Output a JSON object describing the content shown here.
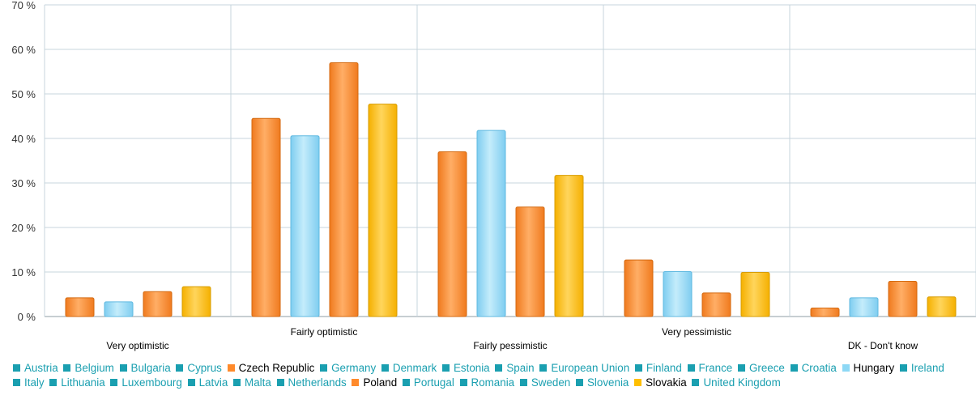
{
  "colors": {
    "inactive": "#1a9fb0",
    "czech": "#ff8a2b",
    "hungary": "#8dd8f5",
    "poland": "#ff8a2b",
    "slovakia": "#ffbf00",
    "grid": "#c7d4dc",
    "axis": "#8f9ea6",
    "text": "#333333"
  },
  "chart_data": {
    "type": "bar",
    "categories": [
      "Very optimistic",
      "Fairly optimistic",
      "Fairly pessimistic",
      "Very pessimistic",
      "DK - Don't know"
    ],
    "series": [
      {
        "name": "Czech Republic",
        "color_key": "czech",
        "values": [
          4.2,
          44.5,
          37.0,
          12.7,
          1.9
        ]
      },
      {
        "name": "Hungary",
        "color_key": "hungary",
        "values": [
          3.3,
          40.6,
          41.8,
          10.1,
          4.2
        ]
      },
      {
        "name": "Poland",
        "color_key": "poland",
        "values": [
          5.6,
          57.0,
          24.6,
          5.3,
          7.9
        ]
      },
      {
        "name": "Slovakia",
        "color_key": "slovakia",
        "values": [
          6.7,
          47.7,
          31.7,
          9.9,
          4.4
        ]
      }
    ],
    "yticks": [
      "0 %",
      "10 %",
      "20 %",
      "30 %",
      "40 %",
      "50 %",
      "60 %",
      "70 %"
    ],
    "ylim": [
      0,
      70
    ],
    "grid": true,
    "legend_position": "bottom"
  },
  "legend": [
    {
      "label": "Austria",
      "active": false,
      "color_key": "inactive"
    },
    {
      "label": "Belgium",
      "active": false,
      "color_key": "inactive"
    },
    {
      "label": "Bulgaria",
      "active": false,
      "color_key": "inactive"
    },
    {
      "label": "Cyprus",
      "active": false,
      "color_key": "inactive"
    },
    {
      "label": "Czech Republic",
      "active": true,
      "color_key": "czech"
    },
    {
      "label": "Germany",
      "active": false,
      "color_key": "inactive"
    },
    {
      "label": "Denmark",
      "active": false,
      "color_key": "inactive"
    },
    {
      "label": "Estonia",
      "active": false,
      "color_key": "inactive"
    },
    {
      "label": "Spain",
      "active": false,
      "color_key": "inactive"
    },
    {
      "label": "European Union",
      "active": false,
      "color_key": "inactive"
    },
    {
      "label": "Finland",
      "active": false,
      "color_key": "inactive"
    },
    {
      "label": "France",
      "active": false,
      "color_key": "inactive"
    },
    {
      "label": "Greece",
      "active": false,
      "color_key": "inactive"
    },
    {
      "label": "Croatia",
      "active": false,
      "color_key": "inactive"
    },
    {
      "label": "Hungary",
      "active": true,
      "color_key": "hungary"
    },
    {
      "label": "Ireland",
      "active": false,
      "color_key": "inactive"
    },
    {
      "label": "Italy",
      "active": false,
      "color_key": "inactive"
    },
    {
      "label": "Lithuania",
      "active": false,
      "color_key": "inactive"
    },
    {
      "label": "Luxembourg",
      "active": false,
      "color_key": "inactive"
    },
    {
      "label": "Latvia",
      "active": false,
      "color_key": "inactive"
    },
    {
      "label": "Malta",
      "active": false,
      "color_key": "inactive"
    },
    {
      "label": "Netherlands",
      "active": false,
      "color_key": "inactive"
    },
    {
      "label": "Poland",
      "active": true,
      "color_key": "poland"
    },
    {
      "label": "Portugal",
      "active": false,
      "color_key": "inactive"
    },
    {
      "label": "Romania",
      "active": false,
      "color_key": "inactive"
    },
    {
      "label": "Sweden",
      "active": false,
      "color_key": "inactive"
    },
    {
      "label": "Slovenia",
      "active": false,
      "color_key": "inactive"
    },
    {
      "label": "Slovakia",
      "active": true,
      "color_key": "slovakia"
    },
    {
      "label": "United Kingdom",
      "active": false,
      "color_key": "inactive"
    }
  ]
}
